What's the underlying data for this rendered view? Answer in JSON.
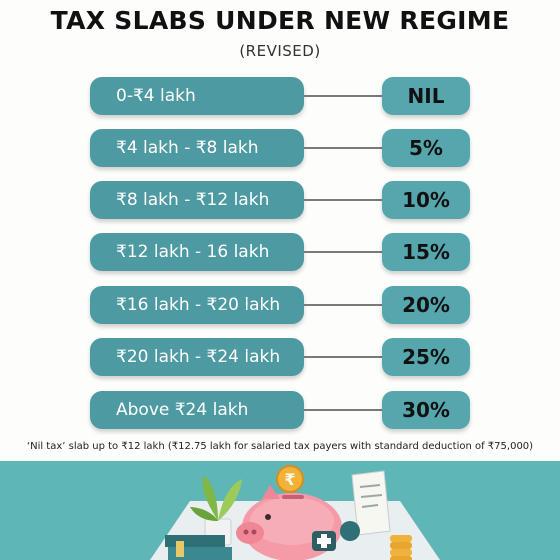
{
  "title": "TAX SLABS UNDER NEW REGIME",
  "subtitle": "(REVISED)",
  "slabs": [
    {
      "range": "0-₹4 lakh",
      "rate": "NIL"
    },
    {
      "range": "₹4 lakh - ₹8 lakh",
      "rate": "5%"
    },
    {
      "range": "₹8 lakh - ₹12 lakh",
      "rate": "10%"
    },
    {
      "range": "₹12 lakh - 16 lakh",
      "rate": "15%"
    },
    {
      "range": "₹16 lakh - ₹20 lakh",
      "rate": "20%"
    },
    {
      "range": "₹20 lakh - ₹24 lakh",
      "rate": "25%"
    },
    {
      "range": "Above ₹24 lakh",
      "rate": "30%"
    }
  ],
  "footnote": "‘Nil tax’ slab up to ₹12 lakh (₹12.75 lakh for salaried tax payers with standard deduction of ₹75,000)",
  "illustration": {
    "coin_symbol": "₹",
    "icons": [
      "piggy-bank-icon",
      "coin-icon",
      "plant-icon",
      "book-stack-icon",
      "receipt-icon",
      "coin-stack-icon",
      "plus-icon"
    ]
  }
}
